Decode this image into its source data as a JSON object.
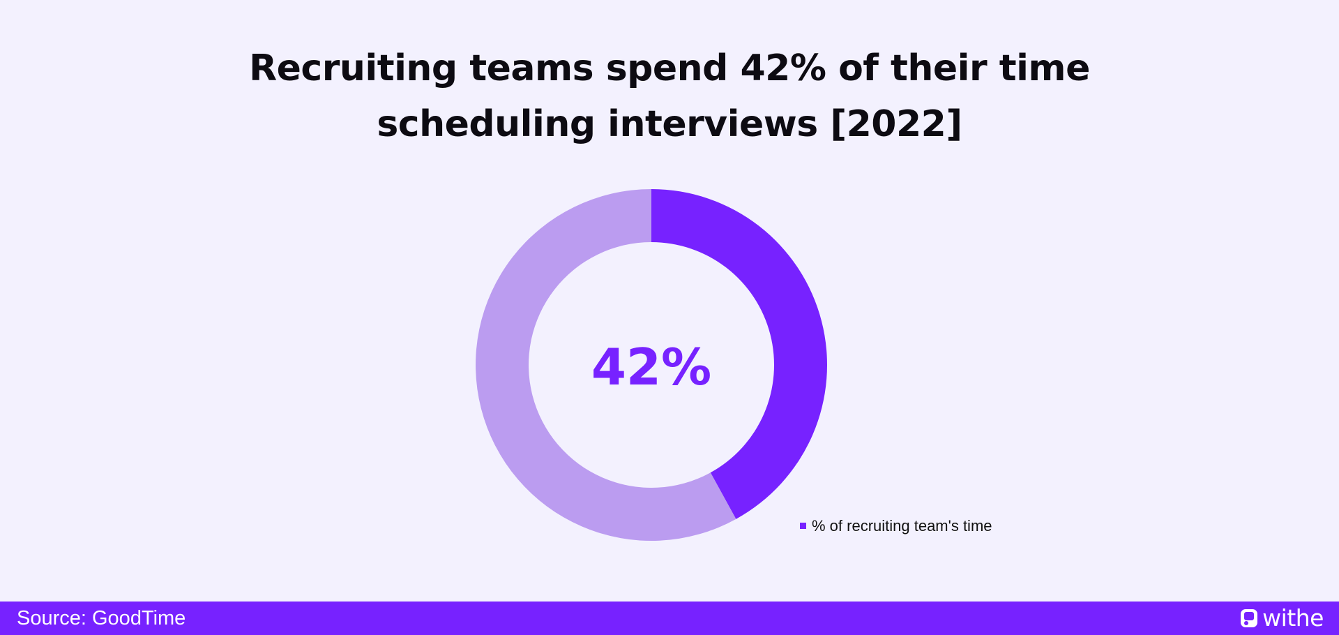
{
  "chart_data": {
    "type": "pie",
    "title_lines": [
      "Recruiting teams spend 42% of their time",
      "scheduling interviews [2022]"
    ],
    "series": [
      {
        "name": "% of recruiting team's time",
        "value": 42,
        "color": "#7722ff"
      },
      {
        "value": 58,
        "color": "#bb9cf0"
      }
    ],
    "center_label": "42%",
    "center_label_color": "#7722ff",
    "legend_position": "bottom-right"
  },
  "footer": {
    "source": "Source: GoodTime",
    "brand": "withe",
    "brand_icon": "withe-logo-icon",
    "background": "#7722ff"
  }
}
